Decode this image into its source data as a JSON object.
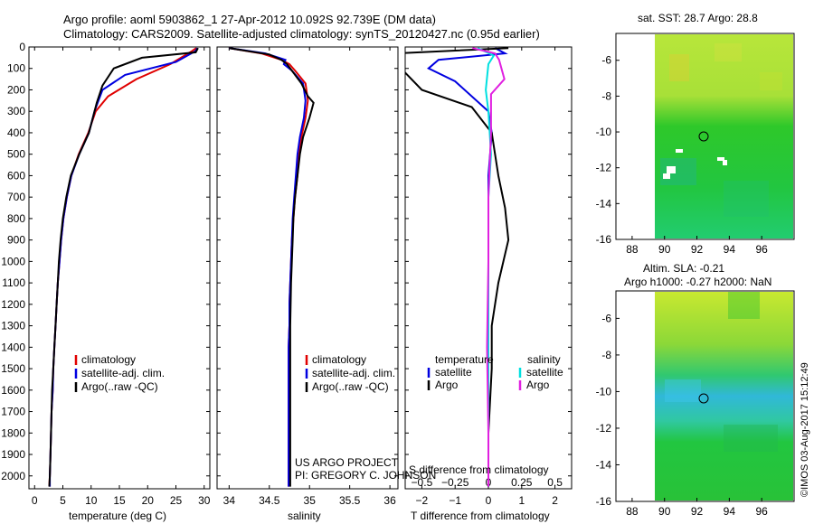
{
  "header": {
    "line1": "Argo profile: aoml 5903862_1 27-Apr-2012 10.092S 92.739E (DM data)",
    "line2": "Climatology: CARS2009. Satellite-adjusted climatology: synTS_20120427.nc (0.95d earlier)"
  },
  "colors": {
    "climatology": "#e00000",
    "satellite": "#0000e0",
    "argo": "#000000",
    "sat_salinity": "#00e0e0",
    "argo_salinity": "#e020e0"
  },
  "chart_data": [
    {
      "type": "line",
      "name": "temperature",
      "xlabel": "temperature (deg C)",
      "ylabel": "",
      "xlim": [
        -1,
        31
      ],
      "ylim": [
        2060,
        0
      ],
      "xticks": [
        0,
        5,
        10,
        15,
        20,
        25,
        30
      ],
      "xtick_labels": [
        "0",
        "5",
        "10",
        "15",
        "20",
        "25",
        "30"
      ],
      "yticks": [
        0,
        100,
        200,
        300,
        400,
        500,
        600,
        700,
        800,
        900,
        1000,
        1100,
        1200,
        1300,
        1400,
        1500,
        1600,
        1700,
        1800,
        1900,
        2000
      ],
      "ytick_labels": [
        "0",
        "100",
        "200",
        "300",
        "400",
        "500",
        "600",
        "700",
        "800",
        "900",
        "1000",
        "1100",
        "1200",
        "1300",
        "1400",
        "1500",
        "1600",
        "1700",
        "1800",
        "1900",
        "2000"
      ],
      "legend": [
        "climatology",
        "satellite-adj. clim.",
        "Argo(..raw -QC)"
      ],
      "series": [
        {
          "name": "climatology",
          "x": [
            28.6,
            27.8,
            24,
            18,
            13,
            10.8,
            9.5,
            7.8,
            6.5,
            5.7,
            5.1,
            4.7,
            4.4,
            4.1,
            3.9,
            3.7,
            3.5,
            3.3,
            3.2,
            3.0,
            2.9,
            2.8,
            2.7,
            2.6
          ],
          "y": [
            5,
            20,
            80,
            150,
            230,
            300,
            400,
            500,
            600,
            700,
            800,
            900,
            1000,
            1100,
            1200,
            1300,
            1400,
            1500,
            1600,
            1700,
            1800,
            1900,
            2000,
            2050
          ]
        },
        {
          "name": "satellite",
          "x": [
            28.8,
            28.4,
            25,
            16,
            12,
            10.6,
            9.6,
            7.9,
            6.5,
            5.7,
            5.1,
            4.7,
            4.4,
            4.1,
            3.9,
            3.7,
            3.5,
            3.3,
            3.2,
            3.0,
            2.9,
            2.8,
            2.7,
            2.7
          ],
          "y": [
            5,
            20,
            70,
            130,
            200,
            300,
            400,
            500,
            600,
            700,
            800,
            900,
            1000,
            1100,
            1200,
            1300,
            1400,
            1500,
            1600,
            1700,
            1800,
            1900,
            2000,
            2050
          ]
        },
        {
          "name": "argo",
          "x": [
            28.9,
            28.5,
            19,
            14,
            12,
            11,
            9.6,
            7.9,
            6.4,
            5.6,
            5.0,
            4.6,
            4.3,
            4.1,
            3.9,
            3.7,
            3.5,
            3.3,
            3.1,
            3.0,
            2.9,
            2.8,
            2.7,
            2.6
          ],
          "y": [
            5,
            25,
            50,
            100,
            180,
            260,
            400,
            500,
            600,
            700,
            800,
            900,
            1000,
            1100,
            1200,
            1300,
            1400,
            1500,
            1600,
            1700,
            1800,
            1900,
            2000,
            2050
          ]
        }
      ]
    },
    {
      "type": "line",
      "name": "salinity",
      "xlabel": "salinity",
      "xlim": [
        33.85,
        36.1
      ],
      "ylim": [
        2060,
        0
      ],
      "xticks": [
        34,
        34.5,
        35,
        35.5,
        36
      ],
      "xtick_labels": [
        "34",
        "34.5",
        "35",
        "35.5",
        "36"
      ],
      "legend": [
        "climatology",
        "satellite-adj. clim.",
        "Argo(..raw -QC)"
      ],
      "series": [
        {
          "name": "climatology",
          "x": [
            34.0,
            34.4,
            34.65,
            34.75,
            34.82,
            34.95,
            34.98,
            34.95,
            34.9,
            34.87,
            34.85,
            34.82,
            34.8,
            34.78,
            34.77,
            34.76,
            34.75,
            34.75,
            34.74,
            34.74,
            34.74,
            34.74,
            34.74
          ],
          "y": [
            5,
            30,
            60,
            80,
            110,
            170,
            250,
            330,
            420,
            500,
            600,
            700,
            800,
            900,
            1000,
            1100,
            1200,
            1300,
            1400,
            1500,
            1700,
            1900,
            2050
          ]
        },
        {
          "name": "satellite",
          "x": [
            34.0,
            34.45,
            34.7,
            34.68,
            34.78,
            34.92,
            34.95,
            34.93,
            34.88,
            34.85,
            34.83,
            34.81,
            34.79,
            34.78,
            34.77,
            34.76,
            34.75,
            34.75,
            34.74,
            34.74,
            34.74,
            34.74,
            34.74
          ],
          "y": [
            5,
            30,
            60,
            80,
            110,
            170,
            250,
            330,
            420,
            500,
            600,
            700,
            800,
            900,
            1000,
            1100,
            1200,
            1300,
            1400,
            1500,
            1700,
            1900,
            2050
          ]
        },
        {
          "name": "argo",
          "x": [
            34.0,
            34.5,
            34.65,
            34.72,
            34.78,
            34.9,
            34.98,
            35.05,
            35.0,
            34.92,
            34.88,
            34.85,
            34.82,
            34.8,
            34.79,
            34.78,
            34.77,
            34.76,
            34.76,
            34.76,
            34.76,
            34.76,
            34.76
          ],
          "y": [
            5,
            35,
            60,
            80,
            110,
            170,
            230,
            260,
            330,
            420,
            500,
            600,
            700,
            800,
            900,
            1000,
            1100,
            1300,
            1500,
            1700,
            1900,
            2000,
            2050
          ]
        }
      ],
      "annotation": "US ARGO PROJECT\nPI: GREGORY C. JOHNSON"
    },
    {
      "type": "line",
      "name": "differences",
      "xlabel": "T difference from climatology",
      "xlabel_top": "S difference from climatology",
      "xlim": [
        -2.5,
        2.5
      ],
      "top_xlim": [
        -0.625,
        0.625
      ],
      "ylim": [
        2060,
        0
      ],
      "xticks": [
        -2,
        -1,
        0,
        1,
        2
      ],
      "xtick_labels": [
        "−2",
        "−1",
        "0",
        "1",
        "2"
      ],
      "top_xticks": [
        -0.5,
        -0.25,
        0,
        0.25,
        0.5
      ],
      "top_xtick_labels": [
        "−0.5",
        "−0.25",
        "0",
        "0.25",
        "0.5"
      ],
      "legend_headers": [
        "temperature",
        "salinity"
      ],
      "legend": [
        "satellite",
        "Argo",
        "satellite",
        "Argo"
      ],
      "series": [
        {
          "name": "T satellite",
          "x": [
            0.2,
            0.5,
            -1.5,
            -1.8,
            -1.0,
            0.0,
            0.1,
            0.0,
            0.0,
            0.0,
            0.0,
            0.0,
            0.0,
            0.0,
            0.0
          ],
          "y": [
            5,
            30,
            60,
            100,
            160,
            300,
            400,
            600,
            800,
            1000,
            1200,
            1400,
            1600,
            1800,
            2050
          ]
        },
        {
          "name": "T Argo",
          "x": [
            0.6,
            -2.8,
            -2.9,
            -2.5,
            -2.0,
            -0.5,
            0.1,
            0.3,
            0.5,
            0.6,
            0.3,
            0.1,
            0.1,
            0.0,
            0.0
          ],
          "y": [
            5,
            30,
            40,
            120,
            200,
            280,
            400,
            600,
            750,
            900,
            1100,
            1300,
            1500,
            1800,
            2050
          ]
        },
        {
          "name": "S satellite",
          "x": [
            -0.08,
            0.04,
            0.0,
            -0.02,
            0.0,
            0.02,
            0.0,
            0.0,
            0.0,
            0.0,
            0.0
          ],
          "y": [
            5,
            40,
            80,
            200,
            300,
            500,
            700,
            1000,
            1400,
            1800,
            2050
          ]
        },
        {
          "name": "S Argo",
          "x": [
            -0.12,
            0.05,
            0.08,
            0.12,
            0.02,
            0.02,
            0.0,
            0.0,
            -0.01,
            0.0,
            0.0
          ],
          "y": [
            5,
            30,
            60,
            150,
            220,
            400,
            700,
            1000,
            1400,
            1800,
            2050
          ]
        }
      ]
    },
    {
      "type": "heatmap",
      "name": "sst-map",
      "title": "sat. SST: 28.7 Argo: 28.8",
      "xlim": [
        87,
        98
      ],
      "ylim": [
        -16,
        -4.5
      ],
      "xticks": [
        88,
        90,
        92,
        94,
        96
      ],
      "xtick_labels": [
        "88",
        "90",
        "92",
        "94",
        "96"
      ],
      "yticks": [
        -6,
        -8,
        -10,
        -12,
        -14,
        -16
      ],
      "ytick_labels": [
        "-6",
        "-8",
        "-10",
        "-12",
        "-14",
        "-16"
      ],
      "marker": {
        "lon": 92.74,
        "lat": -10.09
      }
    },
    {
      "type": "heatmap",
      "name": "sla-map",
      "title": "Altim. SLA: -0.21",
      "subtitle": "Argo h1000: -0.27 h2000: NaN",
      "xlim": [
        87,
        98
      ],
      "ylim": [
        -16,
        -4.5
      ],
      "xticks": [
        88,
        90,
        92,
        94,
        96
      ],
      "xtick_labels": [
        "88",
        "90",
        "92",
        "94",
        "96"
      ],
      "yticks": [
        -6,
        -8,
        -10,
        -12,
        -14,
        -16
      ],
      "ytick_labels": [
        "-6",
        "-8",
        "-10",
        "-12",
        "-14",
        "-16"
      ],
      "marker": {
        "lon": 92.74,
        "lat": -10.09
      }
    }
  ],
  "footer_stamp": "©IMOS 03-Aug-2017 15:12:49"
}
